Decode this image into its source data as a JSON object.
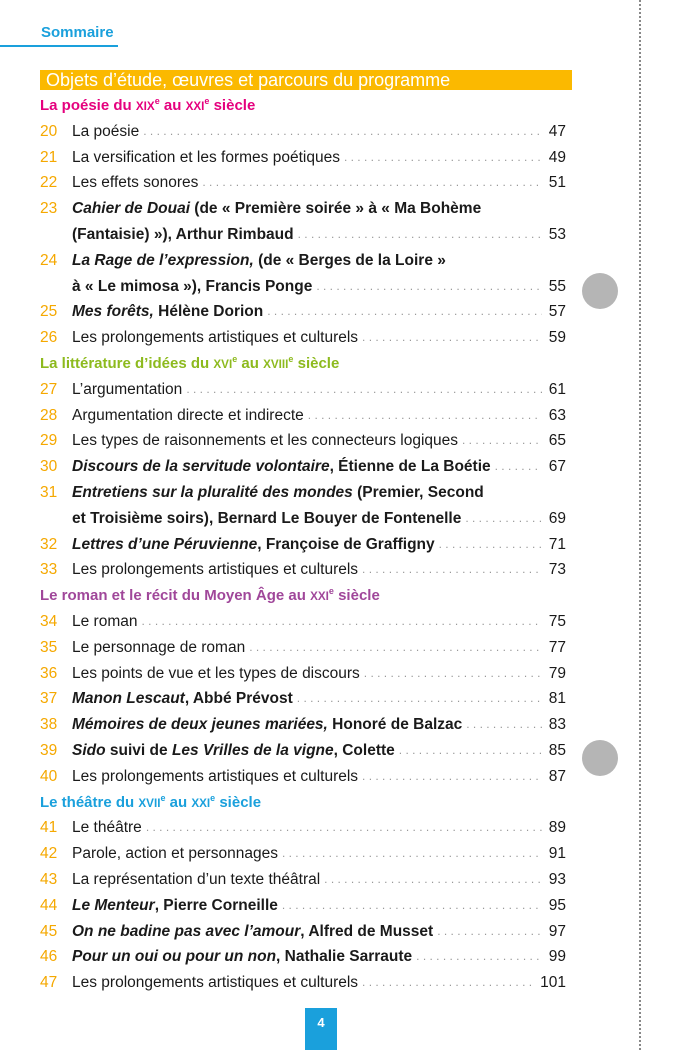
{
  "header": {
    "title": "Sommaire"
  },
  "banner": "Objets d’étude, œuvres et parcours du programme",
  "colors": {
    "accent": "#1aa0dc",
    "banner": "#fbb900",
    "numbers": "#f5a800"
  },
  "sections": [
    {
      "color": "#e5007e",
      "heading": [
        {
          "t": "La poésie du "
        },
        {
          "t": "XIX",
          "s": "sc"
        },
        {
          "t": "e",
          "s": "sup"
        },
        {
          "t": " au "
        },
        {
          "t": "XXI",
          "s": "sc"
        },
        {
          "t": "e",
          "s": "sup"
        },
        {
          "t": " siècle"
        }
      ],
      "entries": [
        {
          "num": "20",
          "lines": [
            [
              {
                "t": "La poésie"
              }
            ]
          ],
          "page": "47"
        },
        {
          "num": "21",
          "lines": [
            [
              {
                "t": "La versification et les formes poétiques"
              }
            ]
          ],
          "page": "49"
        },
        {
          "num": "22",
          "lines": [
            [
              {
                "t": "Les effets sonores"
              }
            ]
          ],
          "page": "51"
        },
        {
          "num": "23",
          "lines": [
            [
              {
                "t": "Cahier de Douai",
                "s": "i"
              },
              {
                "t": " (de « Première soirée » à « Ma Bohème",
                "s": "b"
              }
            ],
            [
              {
                "t": "(Fantaisie) »), Arthur Rimbaud",
                "s": "b"
              }
            ]
          ],
          "page": "53"
        },
        {
          "num": "24",
          "lines": [
            [
              {
                "t": "La Rage de l’expression,",
                "s": "i"
              },
              {
                "t": " (de « Berges de la Loire »",
                "s": "b"
              }
            ],
            [
              {
                "t": "à « Le mimosa »), Francis Ponge",
                "s": "b"
              }
            ]
          ],
          "page": "55"
        },
        {
          "num": "25",
          "lines": [
            [
              {
                "t": "Mes forêts,",
                "s": "i"
              },
              {
                "t": " Hélène Dorion",
                "s": "b"
              }
            ]
          ],
          "page": "57"
        },
        {
          "num": "26",
          "lines": [
            [
              {
                "t": "Les prolongements artistiques et culturels"
              }
            ]
          ],
          "page": "59"
        }
      ]
    },
    {
      "color": "#8dba1e",
      "heading": [
        {
          "t": "La littérature d’idées du "
        },
        {
          "t": "XVI",
          "s": "sc"
        },
        {
          "t": "e",
          "s": "sup"
        },
        {
          "t": " au "
        },
        {
          "t": "XVIII",
          "s": "sc"
        },
        {
          "t": "e",
          "s": "sup"
        },
        {
          "t": " siècle"
        }
      ],
      "entries": [
        {
          "num": "27",
          "lines": [
            [
              {
                "t": "L’argumentation"
              }
            ]
          ],
          "page": "61"
        },
        {
          "num": "28",
          "lines": [
            [
              {
                "t": "Argumentation directe et indirecte"
              }
            ]
          ],
          "page": "63"
        },
        {
          "num": "29",
          "lines": [
            [
              {
                "t": "Les types de raisonnements et les connecteurs logiques"
              }
            ]
          ],
          "page": "65"
        },
        {
          "num": "30",
          "lines": [
            [
              {
                "t": "Discours de la servitude volontaire",
                "s": "i"
              },
              {
                "t": ", Étienne de La Boétie",
                "s": "b"
              }
            ]
          ],
          "page": "67"
        },
        {
          "num": "31",
          "lines": [
            [
              {
                "t": "Entretiens sur la pluralité des mondes",
                "s": "i"
              },
              {
                "t": " (Premier, Second",
                "s": "b"
              }
            ],
            [
              {
                "t": "et Troisième soirs), Bernard Le Bouyer de Fontenelle",
                "s": "b"
              }
            ]
          ],
          "page": "69"
        },
        {
          "num": "32",
          "lines": [
            [
              {
                "t": "Lettres d’une Péruvienne",
                "s": "i"
              },
              {
                "t": ", Françoise de Graffigny",
                "s": "b"
              }
            ]
          ],
          "page": "71"
        },
        {
          "num": "33",
          "lines": [
            [
              {
                "t": "Les prolongements artistiques et culturels"
              }
            ]
          ],
          "page": "73"
        }
      ]
    },
    {
      "color": "#a0479a",
      "heading": [
        {
          "t": "Le roman et le récit du Moyen Âge au "
        },
        {
          "t": "XXI",
          "s": "sc"
        },
        {
          "t": "e",
          "s": "sup"
        },
        {
          "t": " siècle"
        }
      ],
      "entries": [
        {
          "num": "34",
          "lines": [
            [
              {
                "t": "Le roman"
              }
            ]
          ],
          "page": "75"
        },
        {
          "num": "35",
          "lines": [
            [
              {
                "t": "Le personnage de roman"
              }
            ]
          ],
          "page": "77"
        },
        {
          "num": "36",
          "lines": [
            [
              {
                "t": "Les points de vue et les types de discours"
              }
            ]
          ],
          "page": "79"
        },
        {
          "num": "37",
          "lines": [
            [
              {
                "t": "Manon Lescaut",
                "s": "i"
              },
              {
                "t": ", Abbé Prévost",
                "s": "b"
              }
            ]
          ],
          "page": "81"
        },
        {
          "num": "38",
          "lines": [
            [
              {
                "t": "Mémoires de deux jeunes mariées,",
                "s": "i"
              },
              {
                "t": " Honoré de Balzac",
                "s": "b"
              }
            ]
          ],
          "page": "83"
        },
        {
          "num": "39",
          "lines": [
            [
              {
                "t": "Sido",
                "s": "i"
              },
              {
                "t": " suivi de ",
                "s": "b"
              },
              {
                "t": "Les Vrilles de la vigne",
                "s": "i"
              },
              {
                "t": ", Colette",
                "s": "b"
              }
            ]
          ],
          "page": "85"
        },
        {
          "num": "40",
          "lines": [
            [
              {
                "t": "Les prolongements artistiques et culturels"
              }
            ]
          ],
          "page": "87"
        }
      ]
    },
    {
      "color": "#1aa0dc",
      "heading": [
        {
          "t": "Le théâtre du "
        },
        {
          "t": "XVII",
          "s": "sc"
        },
        {
          "t": "e",
          "s": "sup"
        },
        {
          "t": " au "
        },
        {
          "t": "XXI",
          "s": "sc"
        },
        {
          "t": "e",
          "s": "sup"
        },
        {
          "t": " siècle"
        }
      ],
      "entries": [
        {
          "num": "41",
          "lines": [
            [
              {
                "t": "Le théâtre"
              }
            ]
          ],
          "page": "89"
        },
        {
          "num": "42",
          "lines": [
            [
              {
                "t": "Parole, action et personnages"
              }
            ]
          ],
          "page": "91"
        },
        {
          "num": "43",
          "lines": [
            [
              {
                "t": "La représentation d’un texte théâtral"
              }
            ]
          ],
          "page": "93"
        },
        {
          "num": "44",
          "lines": [
            [
              {
                "t": "Le Menteur",
                "s": "i"
              },
              {
                "t": ", Pierre Corneille",
                "s": "b"
              }
            ]
          ],
          "page": "95"
        },
        {
          "num": "45",
          "lines": [
            [
              {
                "t": "On ne badine pas avec l’amour",
                "s": "i"
              },
              {
                "t": ", Alfred de Musset",
                "s": "b"
              }
            ]
          ],
          "page": "97"
        },
        {
          "num": "46",
          "lines": [
            [
              {
                "t": "Pour un oui ou pour un non",
                "s": "i"
              },
              {
                "t": ", Nathalie Sarraute",
                "s": "b"
              }
            ]
          ],
          "page": "99"
        },
        {
          "num": "47",
          "lines": [
            [
              {
                "t": "Les prolongements artistiques et culturels"
              }
            ]
          ],
          "page": "101"
        }
      ]
    }
  ],
  "folio": "4"
}
